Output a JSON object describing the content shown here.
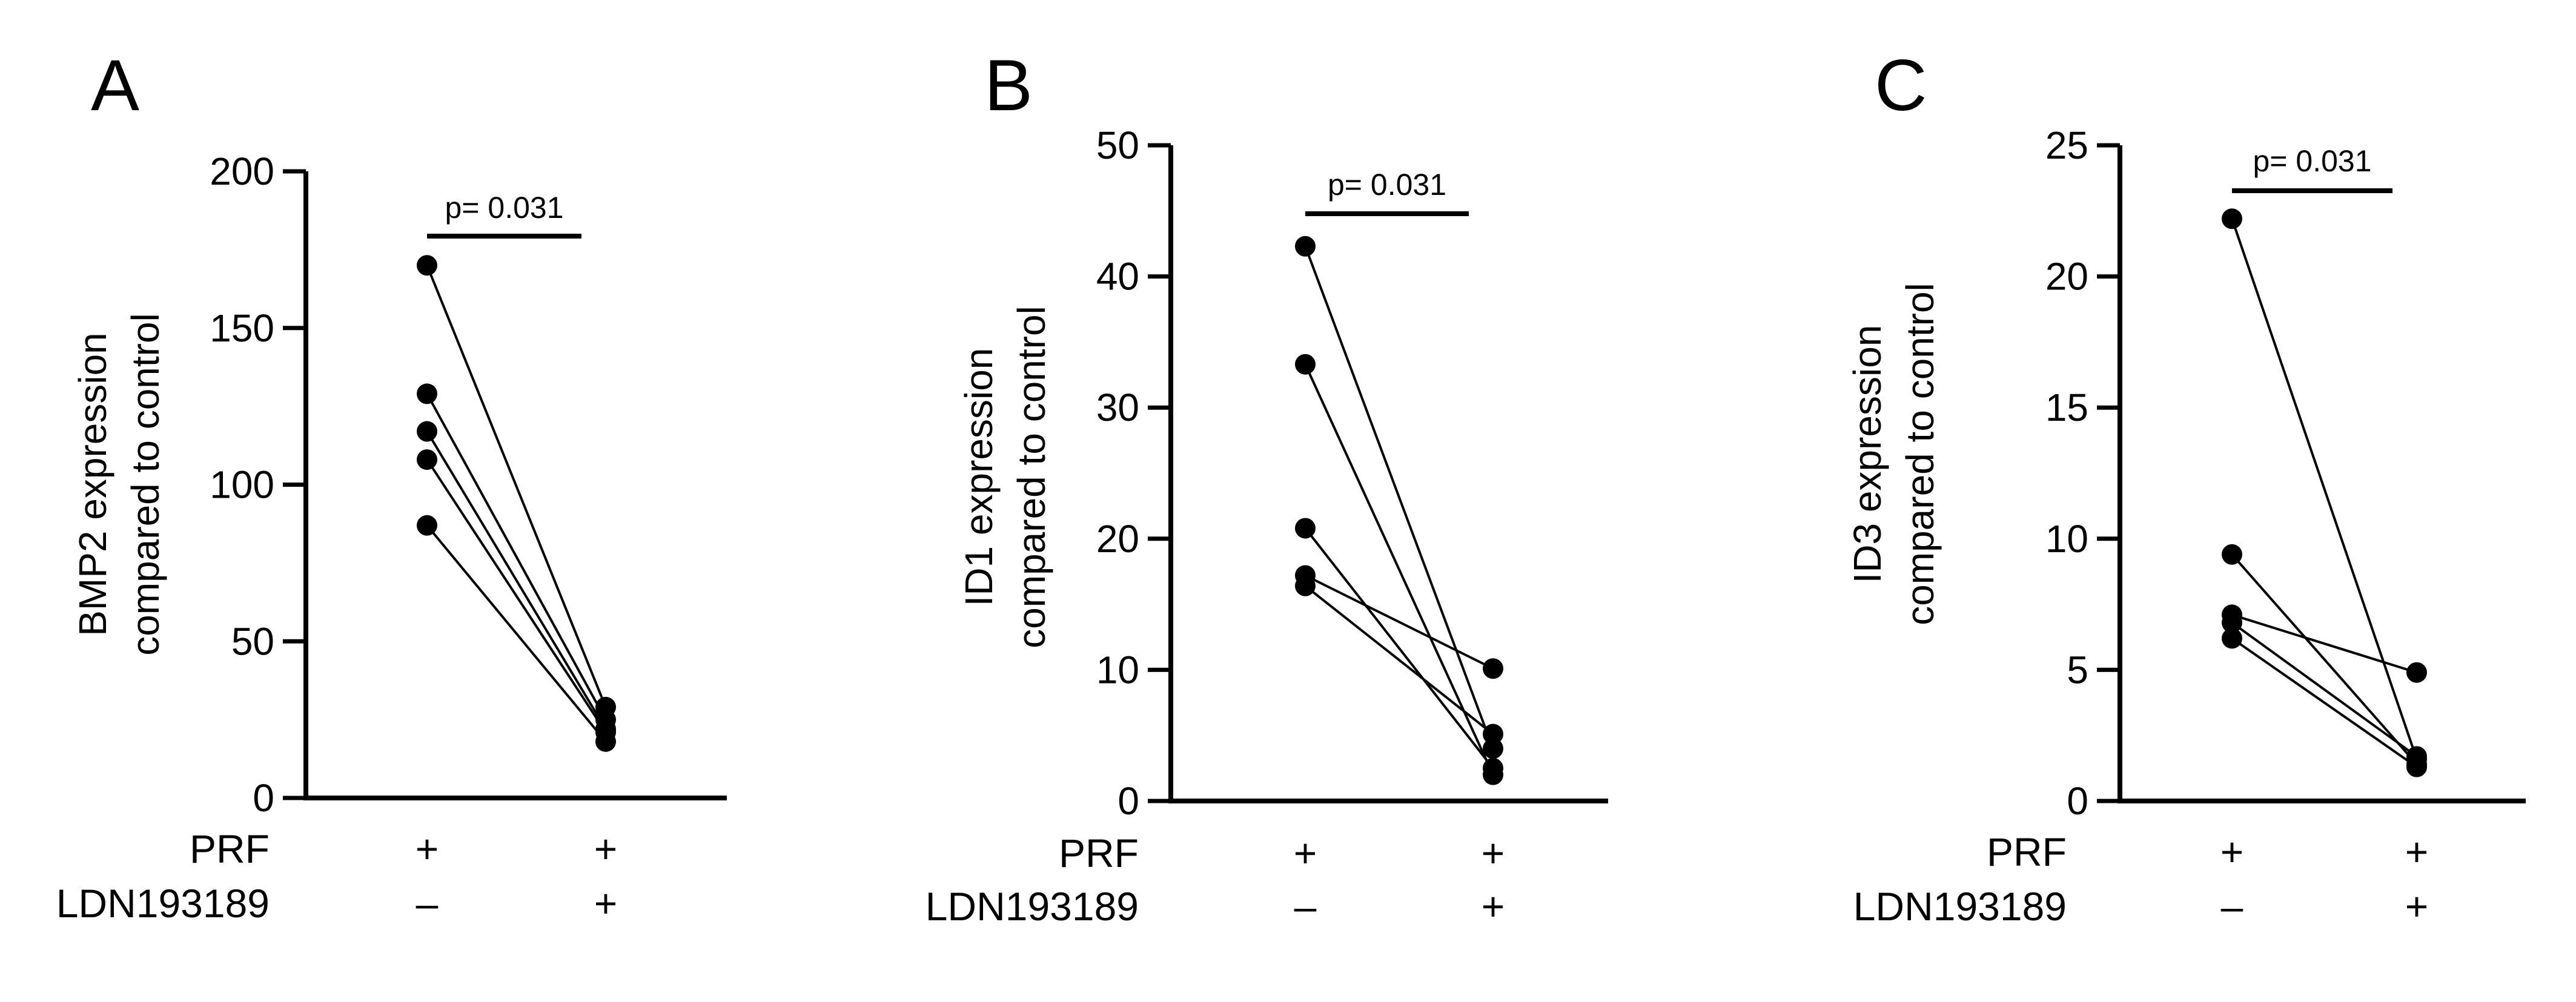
{
  "chart_data": [
    {
      "type": "line",
      "panel": "A",
      "ylabel": [
        "BMP2 expression",
        "compared to control"
      ],
      "ylim": [
        0,
        200
      ],
      "yticks": [
        0,
        50,
        100,
        150,
        200
      ],
      "categories": [
        "PRF + / LDN193189 –",
        "PRF + / LDN193189 +"
      ],
      "series": [
        {
          "values": [
            170,
            29
          ]
        },
        {
          "values": [
            129,
            25
          ]
        },
        {
          "values": [
            117,
            22
          ]
        },
        {
          "values": [
            108,
            21
          ]
        },
        {
          "values": [
            87,
            18
          ]
        }
      ],
      "annotation": "p= 0.031",
      "bracket": [
        0,
        1
      ]
    },
    {
      "type": "line",
      "panel": "B",
      "ylabel": [
        "ID1 expression",
        "compared to control"
      ],
      "ylim": [
        0,
        50
      ],
      "yticks": [
        0,
        10,
        20,
        30,
        40,
        50
      ],
      "categories": [
        "PRF + / LDN193189 –",
        "PRF + / LDN193189 +"
      ],
      "series": [
        {
          "values": [
            42.3,
            4.0
          ]
        },
        {
          "values": [
            33.3,
            2.0
          ]
        },
        {
          "values": [
            20.8,
            2.5
          ]
        },
        {
          "values": [
            17.2,
            10.1
          ]
        },
        {
          "values": [
            16.4,
            5.1
          ]
        }
      ],
      "annotation": "p= 0.031",
      "bracket": [
        0,
        1
      ]
    },
    {
      "type": "line",
      "panel": "C",
      "ylabel": [
        "ID3 expression",
        "compared to control"
      ],
      "ylim": [
        0,
        25
      ],
      "yticks": [
        0,
        5,
        10,
        15,
        20,
        25
      ],
      "categories": [
        "PRF + / LDN193189 –",
        "PRF + / LDN193189 +"
      ],
      "series": [
        {
          "values": [
            22.2,
            1.6
          ]
        },
        {
          "values": [
            9.4,
            1.4
          ]
        },
        {
          "values": [
            7.1,
            4.9
          ]
        },
        {
          "values": [
            6.8,
            1.7
          ]
        },
        {
          "values": [
            6.2,
            1.3
          ]
        }
      ],
      "annotation": "p= 0.031",
      "bracket": [
        0,
        1
      ]
    }
  ],
  "conditions": {
    "row1_label": "PRF",
    "row2_label": "LDN193189",
    "row1_signs": [
      "+",
      "+"
    ],
    "row2_signs": [
      "–",
      "+"
    ]
  },
  "style": {
    "ink": "#000000",
    "background": "#ffffff"
  }
}
